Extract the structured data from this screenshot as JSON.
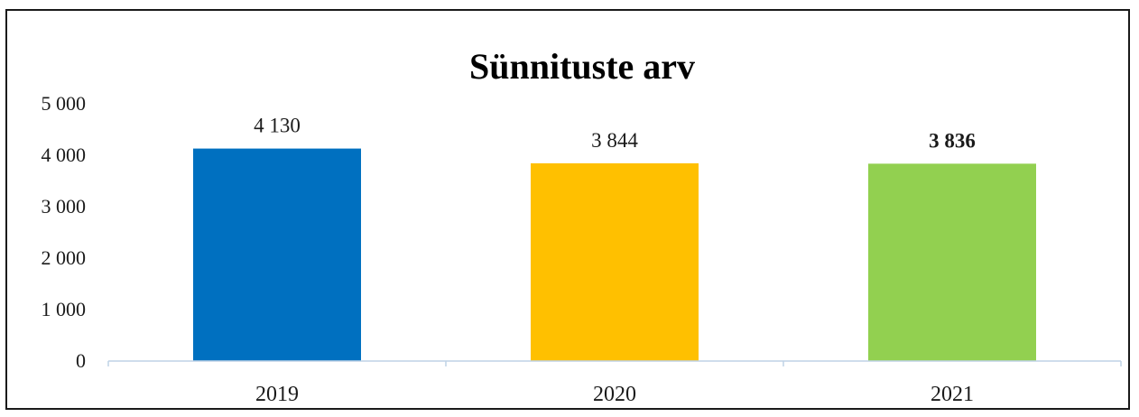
{
  "chart_data": {
    "type": "bar",
    "title": "Sünnituste arv",
    "xlabel": "",
    "ylabel": "",
    "categories": [
      "2019",
      "2020",
      "2021"
    ],
    "values": [
      4130,
      3844,
      3836
    ],
    "data_labels": [
      "4 130",
      "3 844",
      "3 836"
    ],
    "data_label_bold": [
      false,
      false,
      true
    ],
    "colors": [
      "#0070C0",
      "#FFC000",
      "#92D050"
    ],
    "ylim": [
      0,
      5000
    ],
    "yticks": [
      0,
      1000,
      2000,
      3000,
      4000,
      5000
    ],
    "ytick_labels": [
      "0",
      "1 000",
      "2 000",
      "3 000",
      "4 000",
      "5 000"
    ],
    "grid": false,
    "legend": "none"
  },
  "axis_color": "#BFD2E6"
}
